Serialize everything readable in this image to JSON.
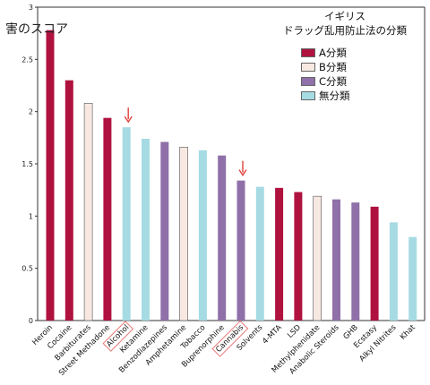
{
  "chart_data": {
    "type": "bar",
    "ylabel": "害のスコア",
    "ylim": [
      0,
      3
    ],
    "yticks": [
      "0",
      "0.5",
      "1",
      "1.5",
      "2",
      "2.5",
      "3"
    ],
    "legend": {
      "title_lines": [
        "イギリス",
        "ドラッグ乱用防止法の分類"
      ],
      "placement": "top-right",
      "entries": [
        {
          "key": "A",
          "label": "A分類",
          "color": "#b0123f"
        },
        {
          "key": "B",
          "label": "B分類",
          "color": "#f8e8e2"
        },
        {
          "key": "C",
          "label": "C分類",
          "color": "#8f70a8"
        },
        {
          "key": "N",
          "label": "無分類",
          "color": "#a6dbe3"
        }
      ]
    },
    "categories": [
      "Heroin",
      "Cocaine",
      "Barbiturates",
      "Street Methadone",
      "Alcohol",
      "Ketamine",
      "Benzodiazepines",
      "Amphetamine",
      "Tobacco",
      "Buprenorphine",
      "Cannabis",
      "Solvents",
      "4-MTA",
      "LSD",
      "Methylphenidate",
      "Anabolic Steroids",
      "GHB",
      "Ecstasy",
      "Alkyl Nitrites",
      "Khat"
    ],
    "values": [
      2.78,
      2.3,
      2.08,
      1.94,
      1.85,
      1.74,
      1.71,
      1.66,
      1.63,
      1.58,
      1.34,
      1.28,
      1.27,
      1.23,
      1.19,
      1.16,
      1.13,
      1.09,
      0.94,
      0.8
    ],
    "classes": [
      "A",
      "A",
      "B",
      "A",
      "N",
      "N",
      "C",
      "B",
      "N",
      "C",
      "C",
      "N",
      "A",
      "A",
      "B",
      "C",
      "C",
      "A",
      "N",
      "N"
    ],
    "highlighted": [
      "Alcohol",
      "Cannabis"
    ],
    "colors": {
      "axis": "#333333",
      "arrow": "#e0403a",
      "highlight_box": "#e87878",
      "bar_outline": "#555555"
    }
  }
}
